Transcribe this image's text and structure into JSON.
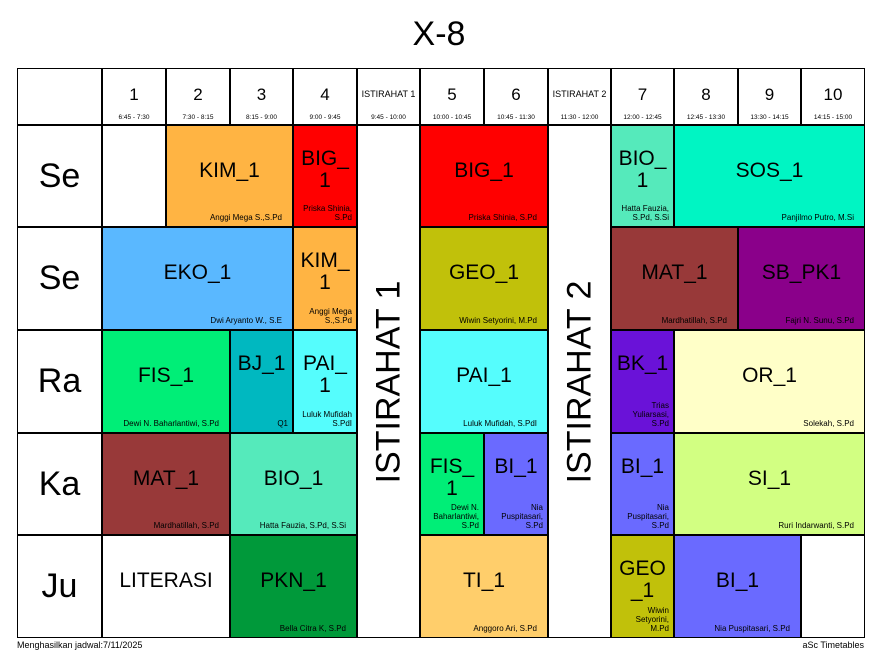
{
  "title": "X-8",
  "headers": [
    {
      "label": "1",
      "time": "6:45 - 7:30"
    },
    {
      "label": "2",
      "time": "7:30 - 8:15"
    },
    {
      "label": "3",
      "time": "8:15 - 9:00"
    },
    {
      "label": "4",
      "time": "9:00 - 9:45"
    },
    {
      "label": "ISTIRAHAT 1",
      "time": "9:45 - 10:00",
      "small": true
    },
    {
      "label": "5",
      "time": "10:00 - 10:45"
    },
    {
      "label": "6",
      "time": "10:45 - 11:30"
    },
    {
      "label": "ISTIRAHAT 2",
      "time": "11:30 - 12:00",
      "small": true
    },
    {
      "label": "7",
      "time": "12:00 - 12:45"
    },
    {
      "label": "8",
      "time": "12:45 - 13:30"
    },
    {
      "label": "9",
      "time": "13:30 - 14:15"
    },
    {
      "label": "10",
      "time": "14:15 - 15:00"
    }
  ],
  "days": [
    "Se",
    "Se",
    "Ra",
    "Ka",
    "Ju"
  ],
  "breaks": [
    "ISTIRAHAT 1",
    "ISTIRAHAT 2"
  ],
  "lessons": [
    {
      "row": 0,
      "col": 1,
      "span": 2,
      "subject": "KIM_1",
      "teacher": "Anggi Mega S.,S.Pd",
      "color": "#ffb443"
    },
    {
      "row": 0,
      "col": 3,
      "span": 1,
      "subject": "BIG_1",
      "teacher": "Priska Shinia, S.Pd",
      "color": "#ff0000"
    },
    {
      "row": 0,
      "col": 5,
      "span": 2,
      "subject": "BIG_1",
      "teacher": "Priska Shinia, S.Pd",
      "color": "#ff0000"
    },
    {
      "row": 0,
      "col": 8,
      "span": 1,
      "subject": "BIO_1",
      "teacher": "Hatta Fauzia, S.Pd, S.Si",
      "color": "#55eabb"
    },
    {
      "row": 0,
      "col": 9,
      "span": 3,
      "subject": "SOS_1",
      "teacher": "Panjilmo Putro, M.Si",
      "color": "#00f5c3"
    },
    {
      "row": 1,
      "col": 0,
      "span": 3,
      "subject": "EKO_1",
      "teacher": "Dwi Aryanto W., S.E",
      "color": "#5ab8ff"
    },
    {
      "row": 1,
      "col": 3,
      "span": 1,
      "subject": "KIM_1",
      "teacher": "Anggi Mega S.,S.Pd",
      "color": "#ffb443"
    },
    {
      "row": 1,
      "col": 5,
      "span": 2,
      "subject": "GEO_1",
      "teacher": "Wiwin Setyorini, M.Pd",
      "color": "#c1c10a"
    },
    {
      "row": 1,
      "col": 8,
      "span": 2,
      "subject": "MAT_1",
      "teacher": "Mardhatillah, S.Pd",
      "color": "#983939"
    },
    {
      "row": 1,
      "col": 10,
      "span": 2,
      "subject": "SB_PK1",
      "teacher": "Fajri N. Sunu, S.Pd",
      "color": "#8a008a"
    },
    {
      "row": 2,
      "col": 0,
      "span": 2,
      "subject": "FIS_1",
      "teacher": "Dewi N. Baharlantiwi, S.Pd",
      "color": "#00ee77"
    },
    {
      "row": 2,
      "col": 2,
      "span": 1,
      "subject": "BJ_1",
      "teacher": "Q1",
      "color": "#00b8c0"
    },
    {
      "row": 2,
      "col": 3,
      "span": 1,
      "subject": "PAI_1",
      "teacher": "Luluk Mufidah S.PdI",
      "color": "#55fdfd"
    },
    {
      "row": 2,
      "col": 5,
      "span": 2,
      "subject": "PAI_1",
      "teacher": "Luluk Mufidah, S.PdI",
      "color": "#55fdfd"
    },
    {
      "row": 2,
      "col": 8,
      "span": 1,
      "subject": "BK_1",
      "teacher": "Trias Yuliarsasi, S.Pd",
      "color": "#6a12d8"
    },
    {
      "row": 2,
      "col": 9,
      "span": 3,
      "subject": "OR_1",
      "teacher": "Solekah, S.Pd",
      "color": "#ffffc8"
    },
    {
      "row": 3,
      "col": 0,
      "span": 2,
      "subject": "MAT_1",
      "teacher": "Mardhatillah, S.Pd",
      "color": "#983939"
    },
    {
      "row": 3,
      "col": 2,
      "span": 2,
      "subject": "BIO_1",
      "teacher": "Hatta Fauzia, S.Pd, S.Si",
      "color": "#55eabb"
    },
    {
      "row": 3,
      "col": 5,
      "span": 1,
      "subject": "FIS_1",
      "teacher": "Dewi N. Baharlantiwi, S.Pd",
      "color": "#00ee77"
    },
    {
      "row": 3,
      "col": 6,
      "span": 1,
      "subject": "BI_1",
      "teacher": "Nia Puspitasari, S.Pd",
      "color": "#6a6aff"
    },
    {
      "row": 3,
      "col": 8,
      "span": 1,
      "subject": "BI_1",
      "teacher": "Nia Puspitasari, S.Pd",
      "color": "#6a6aff"
    },
    {
      "row": 3,
      "col": 9,
      "span": 3,
      "subject": "SI_1",
      "teacher": "Ruri Indarwanti, S.Pd",
      "color": "#d2ff82"
    },
    {
      "row": 4,
      "col": 0,
      "span": 2,
      "subject": "LITERASI",
      "teacher": "",
      "color": "#ffffff"
    },
    {
      "row": 4,
      "col": 2,
      "span": 2,
      "subject": "PKN_1",
      "teacher": "Bella Citra K, S.Pd",
      "color": "#00993a"
    },
    {
      "row": 4,
      "col": 5,
      "span": 2,
      "subject": "TI_1",
      "teacher": "Anggoro Ari, S.Pd",
      "color": "#ffce6b"
    },
    {
      "row": 4,
      "col": 8,
      "span": 1,
      "subject": "GEO_1",
      "teacher": "Wiwin Setyorini, M.Pd",
      "color": "#c1c10a"
    },
    {
      "row": 4,
      "col": 9,
      "span": 2,
      "subject": "BI_1",
      "teacher": "Nia Puspitasari, S.Pd",
      "color": "#6a6aff"
    }
  ],
  "footer_left": "Menghasilkan jadwal:7/11/2025",
  "footer_right": "aSc Timetables"
}
